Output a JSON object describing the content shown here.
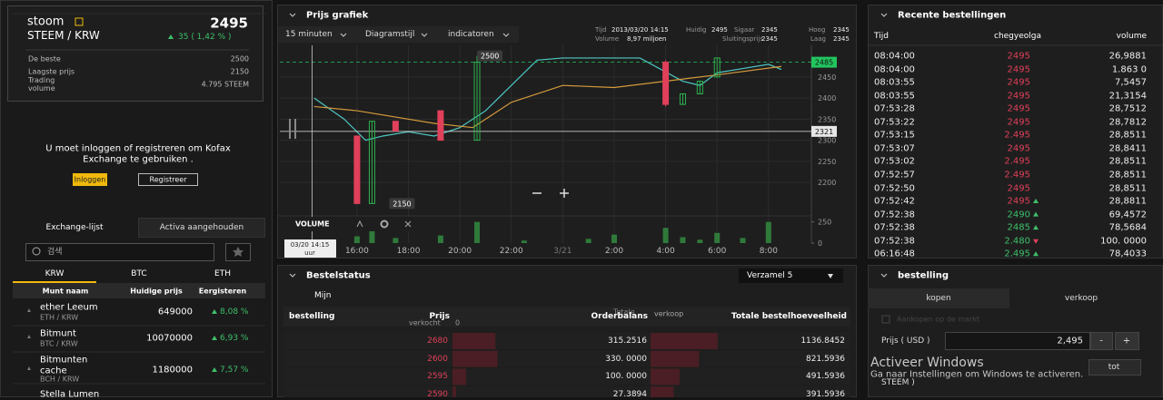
{
  "ticker": {
    "name": "stoom",
    "pair": "STEEM / KRW",
    "price": "2495",
    "change": "35 ( 1,42 % )",
    "stats": [
      {
        "label": "De beste",
        "value": "2500"
      },
      {
        "label": "Laagste prijs",
        "value": "2150"
      },
      {
        "label": "Trading volume",
        "value": "4.795 STEEM"
      }
    ]
  },
  "login": {
    "message": "U moet inloggen of registreren om Kofax Exchange te gebruiken .",
    "buttons": [
      "Inloggen",
      "Registreer"
    ]
  },
  "market_list": {
    "tabs": [
      "Exchange-lijst",
      "Activa aangehouden"
    ],
    "search_placeholder": "검색",
    "markets": [
      "KRW",
      "BTC",
      "ETH"
    ],
    "columns": [
      "Munt naam",
      "Huidige prijs",
      "Eergisteren"
    ],
    "coins": [
      {
        "name": "ether Leeum",
        "pair": "ETH / KRW",
        "price": "649000",
        "change": "8,08 %"
      },
      {
        "name": "Bitmunt",
        "pair": "BTC / KRW",
        "price": "10070000",
        "change": "6,93 %"
      },
      {
        "name": "Bitmunten cache",
        "pair": "BCH / KRW",
        "price": "1180000",
        "change": "7,57 %"
      },
      {
        "name": "Stella Lumen"
      }
    ]
  },
  "chart_panel": {
    "title": "Prijs grafiek",
    "toolbar": [
      "15 minuten",
      "Diagramstijl",
      "indicatoren"
    ],
    "info": [
      {
        "label": "Tijd",
        "value": "2013/03/20 14:15"
      },
      {
        "label": "Huidig",
        "value": "2495"
      },
      {
        "label": "Sigaar",
        "value": "2345"
      },
      {
        "label": "Hoog",
        "value": "2345"
      },
      {
        "label": "Volume",
        "value": "8,97 miljoen"
      },
      {
        "label": "Sluitingsprijs",
        "value": "2345"
      },
      {
        "label": "Laag",
        "value": "2345"
      }
    ],
    "volume_label": "VOLUME",
    "tooltip": [
      "03/20 14:15",
      "uur"
    ]
  },
  "chart_data": {
    "type": "candlestick",
    "xlim": [
      "13:00",
      "09:40"
    ],
    "ylim": [
      2125,
      2525
    ],
    "yticks": [
      2200,
      2250,
      2300,
      2350,
      2400,
      2450
    ],
    "xticks": [
      "16:00",
      "18:00",
      "20:00",
      "22:00",
      {
        "value": "00:00",
        "label": "3/21"
      },
      "2:00",
      "4:00",
      "6:00",
      "8:00"
    ],
    "grid": true,
    "candles": {
      "x": [
        "16:00",
        "16:35",
        "17:30",
        "19:15",
        "20:40",
        "04:00",
        "04:40",
        "05:20",
        "06:00"
      ],
      "open": [
        2310,
        2150,
        2345,
        2370,
        2300,
        2485,
        2385,
        2410,
        2450
      ],
      "close": [
        2150,
        2345,
        2322,
        2300,
        2485,
        2385,
        2410,
        2440,
        2495
      ],
      "high": [
        2310,
        2345,
        2345,
        2370,
        2500,
        2490,
        2410,
        2440,
        2495
      ],
      "low": [
        2150,
        2150,
        2322,
        2300,
        2300,
        2380,
        2385,
        2410,
        2450
      ],
      "up_color": "#2fb34f",
      "down_color": "#e0405a"
    },
    "series": [
      {
        "color": "#4ec8c4",
        "x": [
          "14:20",
          "15:30",
          "16:20",
          "17:00",
          "18:00",
          "19:00",
          "20:00",
          "21:00",
          "22:00",
          "23:00",
          "00:00",
          "03:00",
          "04:40",
          "05:20",
          "06:00",
          "07:00",
          "08:00",
          "08:30"
        ],
        "values": [
          2400,
          2350,
          2300,
          2310,
          2320,
          2310,
          2330,
          2370,
          2430,
          2490,
          2495,
          2495,
          2440,
          2430,
          2460,
          2470,
          2480,
          2468
        ]
      },
      {
        "color": "#d39a3c",
        "x": [
          "14:20",
          "16:00",
          "17:30",
          "19:00",
          "20:30",
          "22:00",
          "00:00",
          "02:00",
          "04:00",
          "06:00",
          "08:30"
        ],
        "values": [
          2380,
          2370,
          2355,
          2340,
          2330,
          2390,
          2430,
          2425,
          2440,
          2455,
          2475
        ]
      }
    ],
    "volume": {
      "x": [
        "16:00",
        "16:35",
        "17:30",
        "19:15",
        "20:40",
        "22:30",
        "01:00",
        "02:00",
        "04:00",
        "04:40",
        "05:20",
        "06:00",
        "07:00",
        "08:00"
      ],
      "values": [
        80,
        200,
        60,
        90,
        250,
        30,
        50,
        100,
        180,
        70,
        40,
        120,
        60,
        250
      ],
      "color": "#2f7a3a",
      "ylim": [
        0,
        300
      ],
      "yticks": [
        0,
        250
      ]
    },
    "price_lines": [
      {
        "value": 2485,
        "color": "#22c55e"
      },
      {
        "value": 2321,
        "color": "#e6e6e6"
      }
    ],
    "markers": [
      {
        "x": "21:10",
        "value": 2500
      },
      {
        "x": "17:45",
        "value": 2150
      }
    ],
    "crosshair": "14:15"
  },
  "order_status": {
    "title": "Bestelstatus",
    "select": "Verzamel 5",
    "tab": "Mijn",
    "headers": {
      "order": "bestelling",
      "price": "Prijs",
      "sold": "verkocht",
      "sold_value": "0",
      "balance": "Orderbalans",
      "balance_overlay": "Totale",
      "sell": "verkoop",
      "total": "Totale bestelhoeveelheid"
    },
    "prices": [
      2680,
      2600,
      2595,
      2590
    ],
    "quantities": [
      315.2516,
      330,
      100,
      27.3894
    ],
    "quantity_labels": [
      "315.2516",
      "330. 0000",
      "100. 0000",
      "27.3894"
    ],
    "totals": [
      1136.8452,
      821.5936,
      491.5936,
      391.5936
    ]
  },
  "recent_orders": {
    "title": "Recente bestellingen",
    "columns": [
      "Tijd",
      "chegyeolga",
      "volume"
    ],
    "times": [
      "08:04:00",
      "08:04:00",
      "08:03:55",
      "08:03:55",
      "07:53:28",
      "07:53:22",
      "07:53:15",
      "07:53:07",
      "07:53:02",
      "07:52:57",
      "07:52:50",
      "07:52:42",
      "07:52:38",
      "07:52:38",
      "07:52:38",
      "06:16:48"
    ],
    "prices": [
      "2495",
      "2495",
      "2495",
      "2495",
      "2495",
      "2495",
      "2.495",
      "2495",
      "2.495",
      "2.495",
      "2495",
      "2495",
      "2490",
      "2485",
      "2.480",
      "2.495"
    ],
    "volumes": [
      "26,9881",
      "1.863 0",
      "7,5457",
      "21,3154",
      "28,7512",
      "28,7812",
      "28,8511",
      "28,8411",
      "28,8511",
      "28,8511",
      "28,8511",
      "28,8811",
      "69,4572",
      "78,5684",
      "100. 0000",
      "78,4033"
    ],
    "colors": [
      "#e0405a",
      "#e0405a",
      "#e0405a",
      "#e0405a",
      "#e0405a",
      "#e0405a",
      "#e0405a",
      "#e0405a",
      "#e0405a",
      "#e0405a",
      "#e0405a",
      "#e0405a",
      "#3dc06a",
      "#3dc06a",
      "#3dc06a",
      "#3dc06a"
    ],
    "trends": [
      null,
      null,
      null,
      null,
      null,
      null,
      null,
      null,
      null,
      null,
      null,
      "up",
      "up",
      "up",
      "down",
      "up"
    ]
  },
  "order_form": {
    "title": "bestelling",
    "tabs": [
      "kopen",
      "verkoop"
    ],
    "market_buy": "Aankopen op de markt",
    "price_label": "Prijs ( USD )",
    "price_value": "2,495",
    "minus": "-",
    "plus": "+",
    "unit": "STEEM )",
    "total_button": "tot"
  },
  "watermark": {
    "title": "Activeer Windows",
    "text": "Ga naar Instellingen om Windows te activeren."
  }
}
